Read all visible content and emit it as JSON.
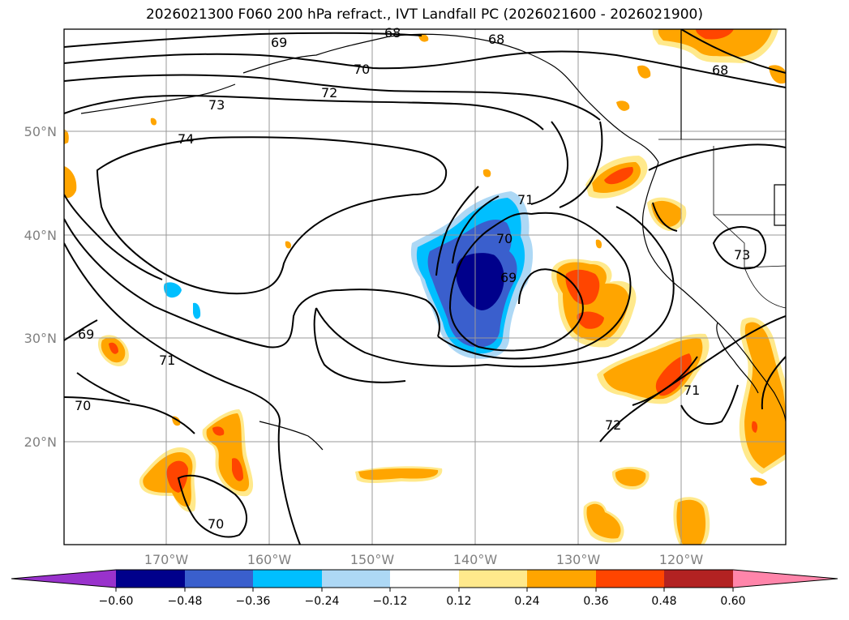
{
  "title": "2026021300 F060 200 hPa refract., IVT Landfall PC (2026021600 - 2026021900)",
  "map": {
    "lat_ticks": [
      "50°N",
      "40°N",
      "30°N",
      "20°N"
    ],
    "lon_ticks": [
      "170°W",
      "160°W",
      "150°W",
      "140°W",
      "130°W",
      "120°W"
    ],
    "contour_labels": [
      "68",
      "69",
      "68",
      "70",
      "72",
      "73",
      "74",
      "71",
      "70",
      "69",
      "68",
      "73",
      "69",
      "71",
      "70",
      "70",
      "72",
      "71"
    ],
    "grid": true
  },
  "colorbar": {
    "ticks": [
      "−0.60",
      "−0.48",
      "−0.36",
      "−0.24",
      "−0.12",
      "0.12",
      "0.24",
      "0.36",
      "0.48",
      "0.60"
    ],
    "colors": [
      "#9932cc",
      "#00008b",
      "#3a5fcd",
      "#00bfff",
      "#add8f5",
      "#ffffff",
      "#ffe98c",
      "#ffa500",
      "#ff4500",
      "#b22222",
      "#ff85aa"
    ]
  }
}
